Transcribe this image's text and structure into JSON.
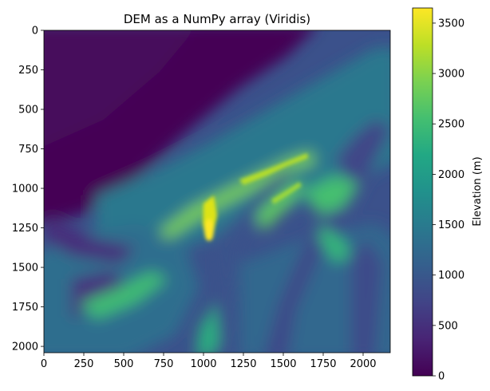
{
  "chart_data": {
    "type": "heatmap",
    "title": "DEM as a NumPy array (Viridis)",
    "xlabel": "",
    "ylabel": "",
    "colorbar_label": "Elevation (m)",
    "colormap": "viridis",
    "array_shape": [
      2040,
      2170
    ],
    "xlim": [
      0,
      2170
    ],
    "ylim": [
      2040,
      0
    ],
    "x_ticks": [
      0,
      250,
      500,
      750,
      1000,
      1250,
      1500,
      1750,
      2000
    ],
    "y_ticks": [
      0,
      250,
      500,
      750,
      1000,
      1250,
      1500,
      1750,
      2000
    ],
    "colorbar_range": [
      0,
      3650
    ],
    "colorbar_ticks": [
      0,
      500,
      1000,
      1500,
      2000,
      2500,
      3000,
      3500
    ],
    "value_range": [
      0,
      3650
    ],
    "peak_location": {
      "x": 1030,
      "y": 1230,
      "value": 3650
    },
    "grid": false,
    "colorbar_position": "right"
  }
}
